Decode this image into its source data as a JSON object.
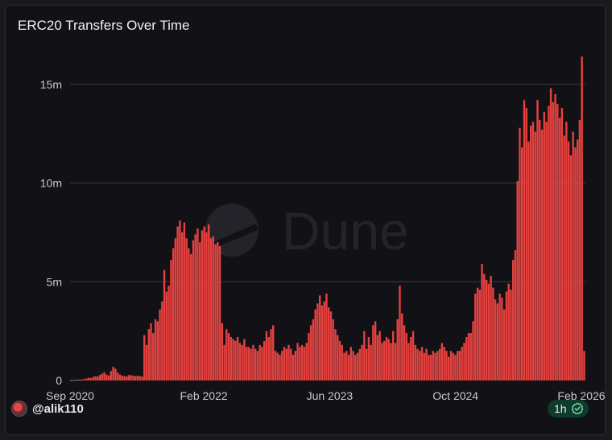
{
  "chart_data": {
    "type": "bar",
    "title": "ERC20 Transfers Over Time",
    "xlabel": "",
    "ylabel": "",
    "x_start": "2020-09",
    "x_end": "2026-02",
    "ylim": [
      0,
      16500000
    ],
    "yticks": [
      0,
      5000000,
      10000000,
      15000000
    ],
    "ytick_labels": [
      "0",
      "5m",
      "10m",
      "15m"
    ],
    "xtick_labels": [
      {
        "label": "Sep 2020",
        "date": "2020-09"
      },
      {
        "label": "Feb 2022",
        "date": "2022-02"
      },
      {
        "label": "Jun 2023",
        "date": "2023-06"
      },
      {
        "label": "Oct 2024",
        "date": "2024-10"
      },
      {
        "label": "Feb 2026",
        "date": "2026-02"
      }
    ],
    "grid": true,
    "bar_color": "#e5413f",
    "interval": "weekly",
    "series": [
      {
        "values": [
          0.01,
          0.01,
          0.02,
          0.02,
          0.03,
          0.05,
          0.08,
          0.1,
          0.14,
          0.12,
          0.18,
          0.22,
          0.2,
          0.28,
          0.35,
          0.42,
          0.3,
          0.25,
          0.48,
          0.7,
          0.6,
          0.4,
          0.3,
          0.25,
          0.22,
          0.2,
          0.28,
          0.26,
          0.25,
          0.22,
          0.24,
          0.22,
          0.2,
          2.3,
          1.8,
          2.6,
          2.9,
          2.4,
          3.1,
          3.0,
          3.6,
          4.0,
          5.6,
          4.5,
          4.8,
          6.1,
          6.7,
          7.2,
          7.8,
          8.1,
          7.5,
          8.0,
          7.2,
          6.7,
          6.4,
          7.1,
          7.4,
          7.7,
          7.0,
          7.6,
          7.8,
          7.5,
          7.9,
          7.2,
          7.3,
          6.9,
          7.0,
          6.8,
          2.9,
          1.8,
          2.6,
          2.4,
          2.2,
          2.1,
          2.0,
          2.2,
          1.9,
          1.8,
          2.1,
          1.7,
          1.7,
          1.6,
          1.8,
          1.6,
          1.5,
          1.8,
          1.7,
          2.0,
          2.5,
          2.2,
          2.6,
          2.8,
          1.5,
          1.4,
          1.3,
          1.5,
          1.7,
          1.6,
          1.8,
          1.6,
          1.3,
          1.5,
          1.9,
          1.7,
          1.8,
          1.7,
          1.9,
          2.4,
          2.8,
          3.1,
          3.6,
          3.9,
          4.3,
          3.8,
          4.0,
          4.4,
          3.7,
          3.5,
          3.1,
          2.6,
          2.3,
          2.0,
          1.8,
          1.4,
          1.5,
          1.3,
          1.7,
          1.5,
          1.3,
          1.4,
          1.6,
          1.8,
          2.5,
          1.6,
          2.2,
          1.8,
          2.8,
          3.0,
          2.3,
          2.5,
          1.9,
          2.0,
          2.2,
          2.1,
          1.9,
          2.5,
          1.9,
          3.1,
          4.8,
          3.4,
          2.8,
          2.4,
          1.9,
          2.2,
          2.5,
          1.8,
          1.6,
          1.5,
          1.7,
          1.4,
          1.6,
          1.3,
          1.3,
          1.5,
          1.4,
          1.5,
          1.6,
          1.9,
          1.7,
          1.5,
          1.2,
          1.5,
          1.4,
          1.3,
          1.5,
          1.5,
          1.7,
          1.9,
          2.2,
          2.4,
          2.4,
          3.0,
          4.4,
          4.7,
          4.6,
          5.9,
          5.4,
          5.1,
          4.9,
          5.3,
          4.7,
          4.1,
          3.9,
          4.4,
          4.2,
          3.6,
          4.5,
          4.9,
          4.6,
          6.1,
          6.6,
          10.1,
          12.8,
          11.8,
          14.2,
          13.8,
          12.1,
          12.9,
          13.1,
          12.6,
          14.2,
          13.2,
          12.7,
          13.6,
          13.1,
          13.9,
          14.8,
          14.1,
          14.5,
          14.0,
          13.3,
          13.8,
          12.4,
          13.1,
          12.1,
          11.4,
          12.6,
          11.8,
          12.2,
          13.2,
          16.4,
          1.5
        ]
      }
    ]
  },
  "watermark": {
    "text": "Dune"
  },
  "footer": {
    "username": "@alik110",
    "refresh_badge": "1h"
  },
  "colors": {
    "background": "#111116",
    "grid": "#3a3a42",
    "bar": "#e5413f",
    "text": "#c9c9d1",
    "badge_bg": "#0f3a2c",
    "badge_accent": "#7fe0b0"
  }
}
